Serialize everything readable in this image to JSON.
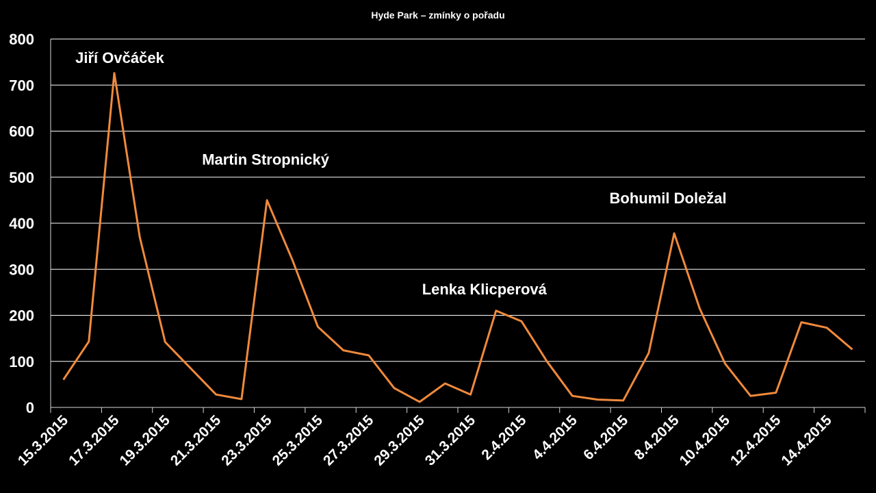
{
  "chart_data": {
    "type": "line",
    "title": "Hyde Park – zmínky o pořadu",
    "xlabel": "",
    "ylabel": "",
    "ylim": [
      0,
      800
    ],
    "yticks": [
      0,
      100,
      200,
      300,
      400,
      500,
      600,
      700,
      800
    ],
    "grid": true,
    "categories": [
      "15.3.2015",
      "16.3.2015",
      "17.3.2015",
      "18.3.2015",
      "19.3.2015",
      "20.3.2015",
      "21.3.2015",
      "22.3.2015",
      "23.3.2015",
      "24.3.2015",
      "25.3.2015",
      "26.3.2015",
      "27.3.2015",
      "28.3.2015",
      "29.3.2015",
      "30.3.2015",
      "31.3.2015",
      "1.4.2015",
      "2.4.2015",
      "3.4.2015",
      "4.4.2015",
      "5.4.2015",
      "6.4.2015",
      "7.4.2015",
      "8.4.2015",
      "9.4.2015",
      "10.4.2015",
      "11.4.2015",
      "12.4.2015",
      "13.4.2015",
      "14.4.2015",
      "15.4.2015"
    ],
    "tick_labels": [
      "15.3.2015",
      "17.3.2015",
      "19.3.2015",
      "21.3.2015",
      "23.3.2015",
      "25.3.2015",
      "27.3.2015",
      "29.3.2015",
      "31.3.2015",
      "2.4.2015",
      "4.4.2015",
      "6.4.2015",
      "8.4.2015",
      "10.4.2015",
      "12.4.2015",
      "14.4.2015"
    ],
    "series": [
      {
        "color": "#f08a3c",
        "values": [
          60,
          143,
          726,
          370,
          142,
          85,
          28,
          18,
          450,
          320,
          175,
          124,
          113,
          42,
          12,
          52,
          28,
          210,
          187,
          100,
          25,
          17,
          15,
          118,
          378,
          215,
          95,
          25,
          32,
          185,
          173,
          126
        ]
      }
    ],
    "annotations": [
      {
        "text": "Jiří Ovčáček",
        "x": "17.3.2015",
        "y": 726
      },
      {
        "text": "Martin Stropnický",
        "x": "23.3.2015",
        "y": 450
      },
      {
        "text": "Lenka Klicperová",
        "x": "1.4.2015",
        "y": 210
      },
      {
        "text": "Bohumil Doležal",
        "x": "8.4.2015",
        "y": 378
      }
    ]
  }
}
